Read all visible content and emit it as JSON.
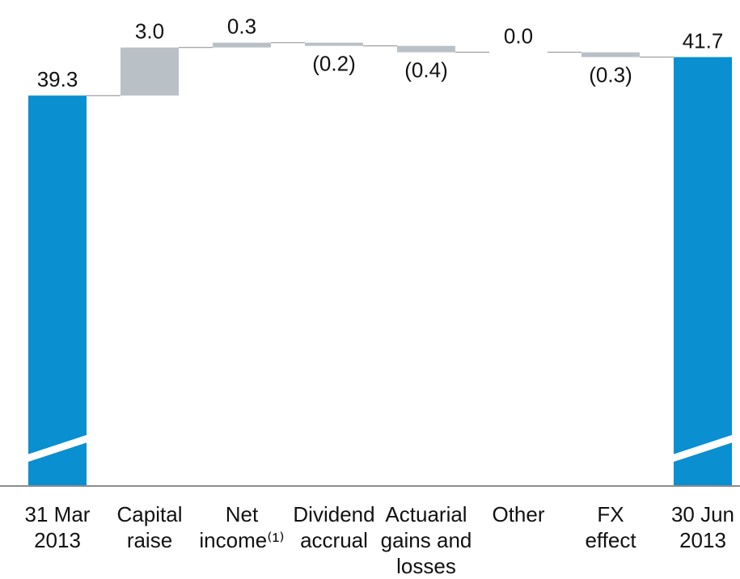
{
  "chart_data": {
    "type": "waterfall",
    "categories": [
      "31 Mar\n2013",
      "Capital\nraise",
      "Net\nincome⁽¹⁾",
      "Dividend\naccrual",
      "Actuarial\ngains and\nlosses",
      "Other",
      "FX\neffect",
      "30 Jun\n2013"
    ],
    "values": [
      39.3,
      3.0,
      0.3,
      -0.2,
      -0.4,
      0.0,
      -0.3,
      41.7
    ],
    "value_labels": [
      "39.3",
      "3.0",
      "0.3",
      "(0.2)",
      "(0.4)",
      "0.0",
      "(0.3)",
      "41.7"
    ],
    "total_color": "#0a8fd0",
    "delta_color": "#b9c1c7",
    "ylim": [
      15,
      44
    ],
    "axis_break": true
  }
}
